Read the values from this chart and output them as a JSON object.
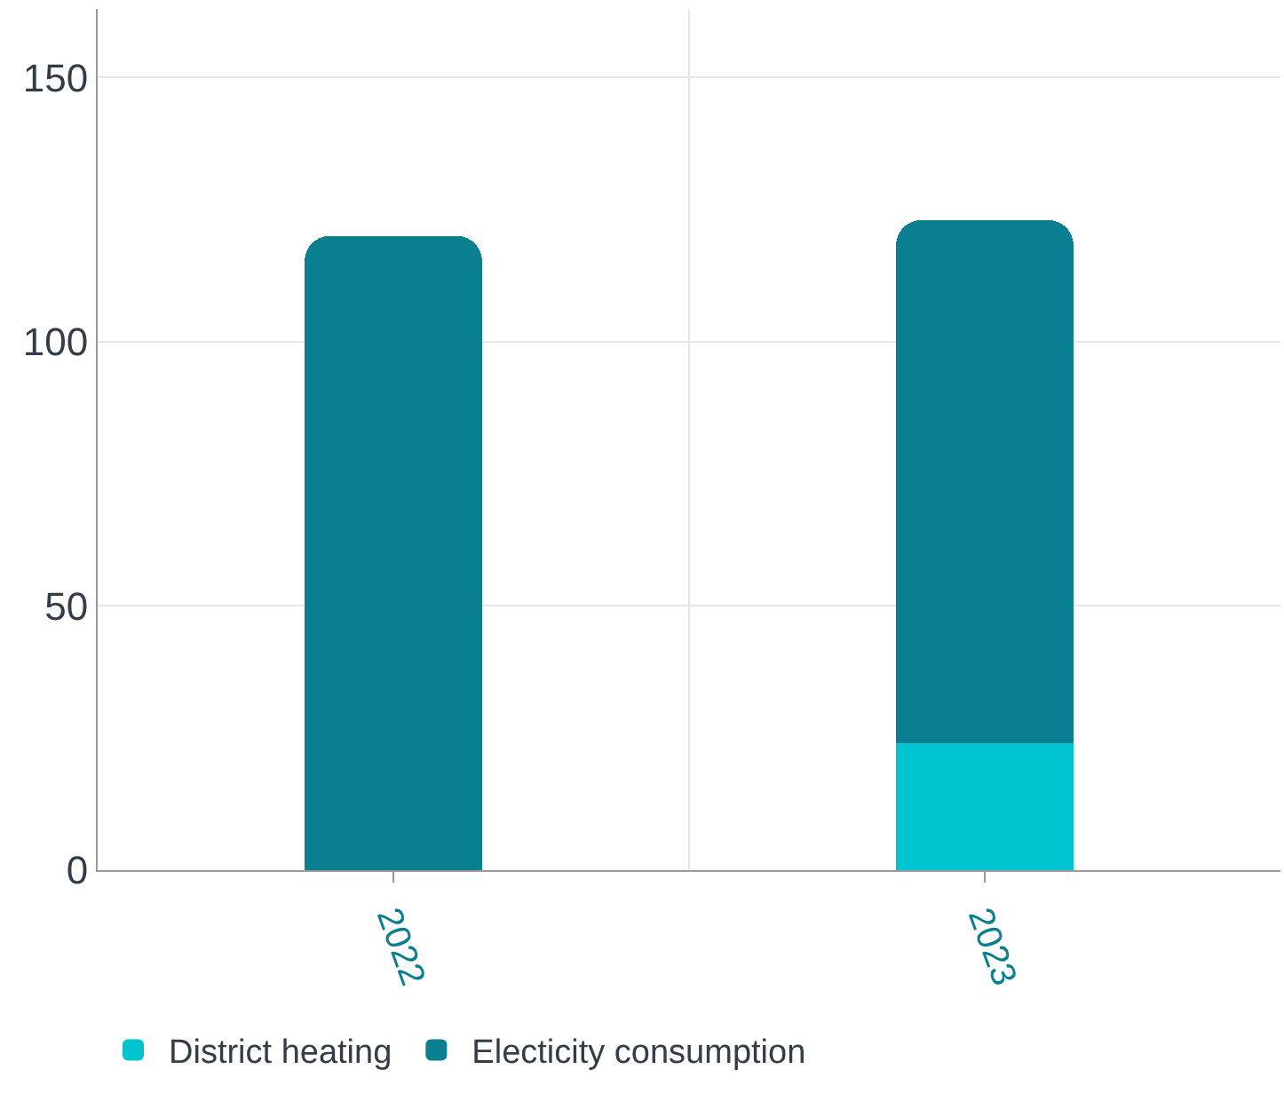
{
  "chart_data": {
    "type": "bar",
    "stacked": true,
    "categories": [
      "2022",
      "2023"
    ],
    "series": [
      {
        "name": "District heating",
        "color": "#00c4cf",
        "values": [
          0,
          24
        ]
      },
      {
        "name": "Electicity consumption",
        "color": "#0a7f8f",
        "values": [
          120,
          99
        ]
      }
    ],
    "ylim": [
      0,
      163
    ],
    "yticks": [
      0,
      50,
      100,
      150
    ],
    "grid": true,
    "legend": "bottom left"
  }
}
